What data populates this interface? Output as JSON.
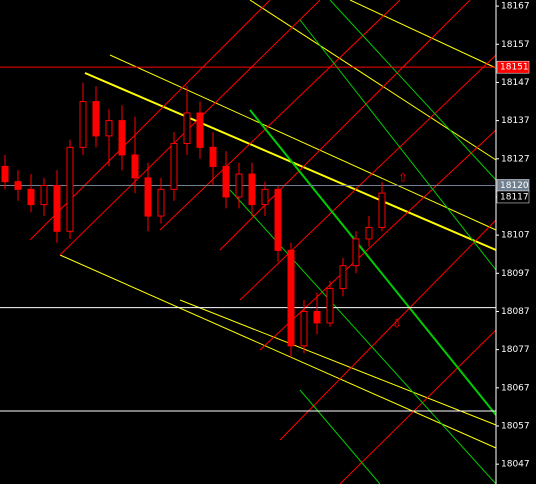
{
  "chart_data": {
    "type": "candlestick",
    "ylim": [
      18041.8,
      18168.6
    ],
    "yticks": [
      18047,
      18057,
      18067,
      18077,
      18087,
      18097,
      18107,
      18117,
      18127,
      18137,
      18147,
      18157,
      18167
    ],
    "open": [
      18125,
      18121,
      18119,
      18115,
      18120,
      18108,
      18130,
      18142,
      18133,
      18137,
      18128,
      18122,
      18112,
      18119,
      18131,
      18139,
      18130,
      18125,
      18117,
      18123,
      18115,
      18119,
      18103,
      18078,
      18087,
      18084,
      18093,
      18099,
      18106,
      18109
    ],
    "high": [
      18128,
      18124,
      18123,
      18122,
      18124,
      18132,
      18147,
      18146,
      18140,
      18141,
      18138,
      18126,
      18122,
      18134,
      18146,
      18142,
      18134,
      18129,
      18126,
      18126,
      18121,
      18120,
      18105,
      18090,
      18092,
      18095,
      18101,
      18108,
      18112,
      18121
    ],
    "low": [
      18119,
      18116,
      18113,
      18112,
      18105,
      18106,
      18128,
      18130,
      18125,
      18124,
      18118,
      18108,
      18110,
      18116,
      18128,
      18127,
      18120,
      18114,
      18114,
      18112,
      18112,
      18100,
      18075,
      18076,
      18081,
      18083,
      18091,
      18097,
      18104,
      18108
    ],
    "close": [
      18121,
      18119,
      18115,
      18120,
      18108,
      18130,
      18142,
      18133,
      18137,
      18128,
      18122,
      18112,
      18119,
      18131,
      18139,
      18130,
      18125,
      18117,
      18123,
      18115,
      18119,
      18103,
      18078,
      18087,
      18084,
      18093,
      18099,
      18106,
      18109,
      18118
    ],
    "up_color": "#000000",
    "down_color": "#ff0000",
    "wick_color": "#ff0000",
    "hlines": [
      {
        "value": 18151,
        "color": "#ff0000"
      },
      {
        "value": 18088,
        "color": "#ffffff"
      },
      {
        "value": 18120,
        "color": "#708090"
      }
    ],
    "price_tags": [
      {
        "value": 18151,
        "color": "#ff0000"
      },
      {
        "value": 18120,
        "color": "#708090"
      },
      {
        "value": 18117,
        "color": "#000000"
      }
    ]
  }
}
